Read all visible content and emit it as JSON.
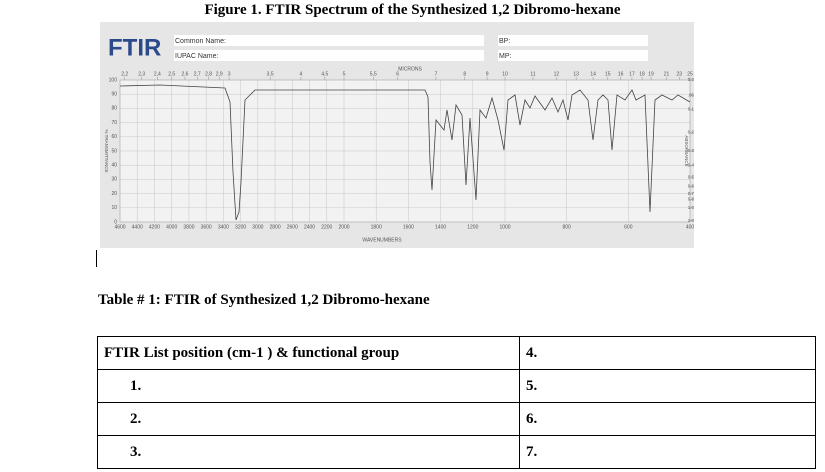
{
  "figure": {
    "title": "Figure 1. FTIR Spectrum of the Synthesized 1,2 Dibromo-hexane",
    "brand": "FTIR",
    "fields": [
      "Common Name:",
      "IUPAC Name:",
      "BP:",
      "MP:"
    ],
    "top_axis_title": "MICRONS",
    "bottom_axis_title": "WAVENUMBERS",
    "left_axis_title": "% TRANSMITTANCE",
    "right_axis_title": "ABSORBANCE",
    "top_ticks": [
      {
        "value": 2.2,
        "label": "2,2"
      },
      {
        "value": 2.3,
        "label": "2,3"
      },
      {
        "value": 2.4,
        "label": "2,4"
      },
      {
        "value": 2.5,
        "label": "2,5"
      },
      {
        "value": 2.6,
        "label": "2,6"
      },
      {
        "value": 2.7,
        "label": "2,7"
      },
      {
        "value": 2.8,
        "label": "2,8"
      },
      {
        "value": 2.9,
        "label": "2,9"
      },
      3,
      {
        "value": 3.5,
        "label": "3,5"
      },
      4,
      {
        "value": 4.5,
        "label": "4,5"
      },
      5,
      {
        "value": 5.5,
        "label": "5,5"
      },
      6,
      7,
      8,
      9,
      10,
      11,
      12,
      13,
      14,
      15,
      16,
      17,
      18,
      19,
      21,
      23,
      25
    ],
    "bottom_ticks": [
      4600,
      4400,
      4200,
      4000,
      3800,
      3600,
      3400,
      3200,
      3000,
      2800,
      2600,
      2400,
      2200,
      2000,
      1800,
      1600,
      1400,
      1200,
      1000,
      800,
      600,
      400
    ],
    "left_ticks": [
      100,
      90,
      80,
      70,
      60,
      50,
      40,
      30,
      20,
      10,
      0
    ],
    "right_ticks": [
      {
        "value": 0,
        "label": "0.0"
      },
      {
        "value": 0.05,
        "label": ".05"
      },
      {
        "value": 0.1,
        "label": "0.1"
      },
      {
        "value": 0.2,
        "label": "0.2"
      },
      {
        "value": 0.3,
        "label": "0.3"
      },
      {
        "value": 0.4,
        "label": "0.4"
      },
      {
        "value": 0.5,
        "label": "0.5"
      },
      {
        "value": 0.6,
        "label": "0.6"
      },
      {
        "value": 0.7,
        "label": "0.7"
      },
      {
        "value": 0.8,
        "label": "0.8"
      },
      {
        "value": 1,
        "label": "1.0"
      },
      {
        "value": 2,
        "label": "2.0"
      }
    ]
  },
  "table": {
    "title": "Table # 1: FTIR of Synthesized 1,2 Dibromo-hexane",
    "rows": [
      [
        "FTIR List position (cm-1 ) & functional group",
        "4."
      ],
      [
        "1.",
        "5."
      ],
      [
        "2.",
        "6."
      ],
      [
        "3.",
        "7."
      ]
    ]
  }
}
